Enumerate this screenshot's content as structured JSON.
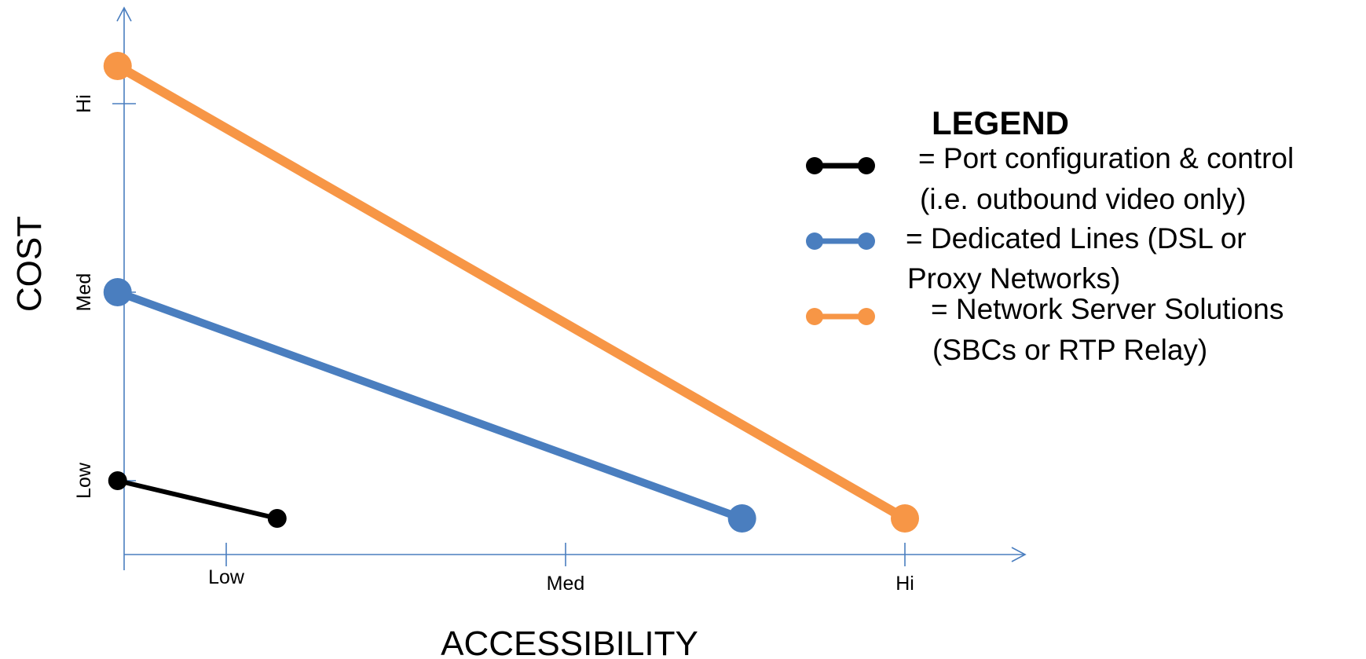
{
  "chart_data": {
    "type": "line",
    "xlabel": "ACCESSIBILITY",
    "ylabel": "COST",
    "x_ticks": [
      "Low",
      "Med",
      "Hi"
    ],
    "y_ticks": [
      "Low",
      "Med",
      "Hi"
    ],
    "xlim": [
      0.7,
      3.35
    ],
    "ylim": [
      0.8,
      3.15
    ],
    "series": [
      {
        "name": "Port configuration & control (i.e. outbound video only)",
        "color": "#000000",
        "points": [
          {
            "x": 0.68,
            "y": 1.0
          },
          {
            "x": 1.15,
            "y": 0.8
          }
        ]
      },
      {
        "name": "Dedicated Lines (DSL or Proxy Networks)",
        "color": "#4a7ebf",
        "points": [
          {
            "x": 0.68,
            "y": 2.0
          },
          {
            "x": 2.52,
            "y": 0.8
          }
        ]
      },
      {
        "name": "Network Server Solutions (SBCs or RTP Relay)",
        "color": "#f79646",
        "points": [
          {
            "x": 0.68,
            "y": 3.2
          },
          {
            "x": 3.0,
            "y": 0.8
          }
        ]
      }
    ],
    "legend": {
      "title": "LEGEND",
      "placement": "right",
      "entries": [
        {
          "lines": [
            "=  Port configuration & control",
            "(i.e. outbound video only)"
          ]
        },
        {
          "lines": [
            "=  Dedicated Lines (DSL or",
            "Proxy Networks)"
          ]
        },
        {
          "lines": [
            "=  Network Server Solutions",
            "(SBCs or RTP Relay)"
          ]
        }
      ]
    },
    "grid": false
  }
}
